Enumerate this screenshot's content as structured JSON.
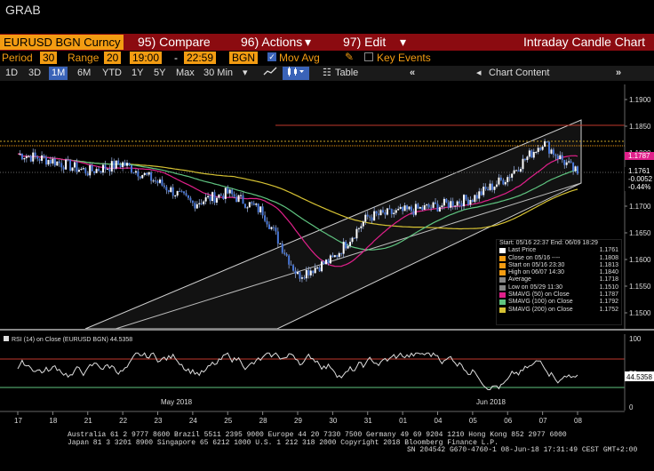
{
  "window": {
    "title": "GRAB"
  },
  "toolbar1": {
    "ticker": "EURUSD BGN Curncy",
    "compare": "95) Compare",
    "actions": "96) Actions",
    "edit": "97) Edit",
    "title": "Intraday Candle Chart"
  },
  "toolbar2": {
    "period_label": "Period",
    "period_value": "30",
    "range_label": "Range",
    "range_value": "20",
    "start_time": "19:00",
    "dash": "-",
    "end_time": "22:59",
    "source": "BGN",
    "mov_avg": "Mov Avg",
    "key_events": "Key Events"
  },
  "toolbar3": {
    "ranges": [
      "1D",
      "3D",
      "1M",
      "6M",
      "YTD",
      "1Y",
      "5Y",
      "Max"
    ],
    "active_range": "1M",
    "interval": "30 Min",
    "table": "Table",
    "chart_content": "Chart Content"
  },
  "chart_data": [
    {
      "type": "candlestick",
      "x_dates": [
        "17",
        "18",
        "21",
        "22",
        "23",
        "24",
        "25",
        "28",
        "29",
        "30",
        "31",
        "01",
        "04",
        "05",
        "06",
        "07",
        "08"
      ],
      "month_labels": [
        "May 2018",
        "Jun 2018"
      ],
      "y_ticks": [
        "1.1900",
        "1.1850",
        "1.1800",
        "1.1750",
        "1.1700",
        "1.1650",
        "1.1600",
        "1.1550",
        "1.1500"
      ],
      "ylim": [
        1.147,
        1.192
      ],
      "series_close": [
        1.1798,
        1.1785,
        1.1765,
        1.178,
        1.1745,
        1.1705,
        1.1725,
        1.169,
        1.157,
        1.16,
        1.168,
        1.169,
        1.17,
        1.1715,
        1.1755,
        1.182,
        1.1761
      ],
      "tags": [
        {
          "value": "1.1787",
          "color": "#e0208a"
        },
        {
          "value": "1.1761",
          "color": "#000000"
        },
        {
          "value": "-0.0052",
          "color": "#000000"
        },
        {
          "value": "-0.44%",
          "color": "#000000"
        }
      ],
      "moving_averages": [
        {
          "name": "SMAVG (50) on Close",
          "value": "1.1787",
          "color": "#e0208a"
        },
        {
          "name": "SMAVG (100) on Close",
          "value": "1.1792",
          "color": "#5fc480"
        },
        {
          "name": "SMAVG (200) on Close",
          "value": "1.1752",
          "color": "#d6c233"
        }
      ],
      "legend": {
        "header": "Start: 05/16 22:37 End: 06/09 18:29",
        "rows": [
          {
            "label": "Last Price",
            "value": "1.1761",
            "color": "#ffffff"
          },
          {
            "label": "Close on 05/16 ----",
            "value": "1.1808",
            "color": "#f39c12"
          },
          {
            "label": "Start on 05/16 23:30",
            "value": "1.1813",
            "color": "#f39c12"
          },
          {
            "label": "High on 06/07 14:30",
            "value": "1.1840",
            "color": "#f39c12"
          },
          {
            "label": "Average",
            "value": "1.1718",
            "color": "#888888"
          },
          {
            "label": "Low on 05/29 11:30",
            "value": "1.1510",
            "color": "#888888"
          },
          {
            "label": "SMAVG (50) on Close",
            "value": "1.1787",
            "color": "#e0208a"
          },
          {
            "label": "SMAVG (100) on Close",
            "value": "1.1792",
            "color": "#5fc480"
          },
          {
            "label": "SMAVG (200) on Close",
            "value": "1.1752",
            "color": "#d6c233"
          }
        ]
      }
    },
    {
      "type": "line",
      "title": "RSI (14) on Close (EURUSD BGN) 44.5358",
      "y_ticks": [
        "100",
        "50",
        "0"
      ],
      "ylim": [
        0,
        100
      ],
      "levels": [
        70,
        30
      ],
      "last_value": "44.5358"
    }
  ],
  "footer": {
    "line1": "Australia 61 2 9777 8600 Brazil 5511 2395 9000 Europe 44 20 7330 7500 Germany 49 69 9204 1210 Hong Kong 852 2977 6000",
    "line2": "Japan 81 3 3201 8900        Singapore 65 6212 1000        U.S. 1 212 318 2000           Copyright 2018 Bloomberg Finance L.P.",
    "line3": "SN 204542 G670-4760-1 08-Jun-18 17:31:49 CEST GMT+2:00"
  }
}
